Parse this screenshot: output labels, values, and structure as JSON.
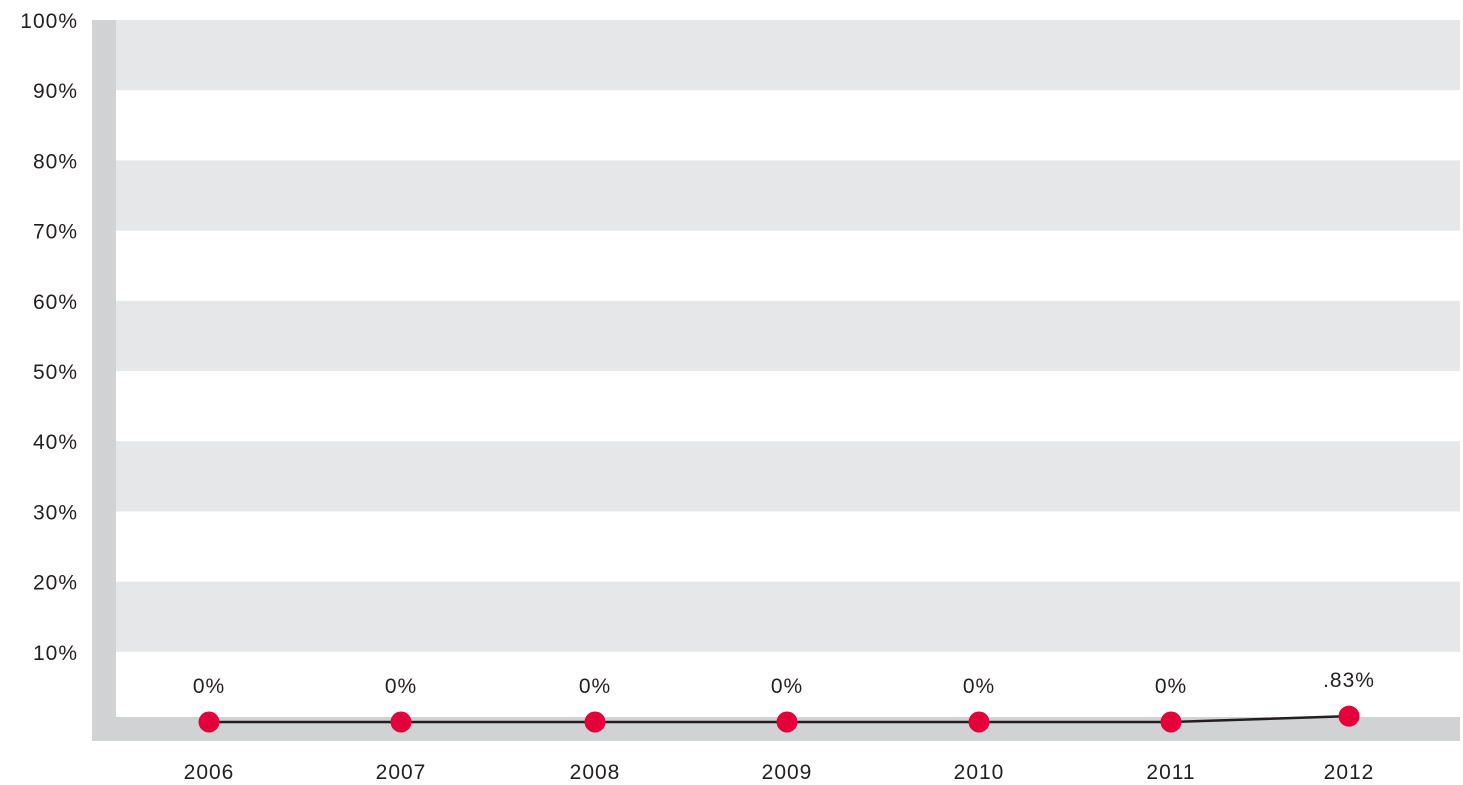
{
  "chart_data": {
    "type": "line",
    "title": "",
    "xlabel": "",
    "ylabel": "",
    "categories": [
      "2006",
      "2007",
      "2008",
      "2009",
      "2010",
      "2011",
      "2012"
    ],
    "series": [
      {
        "values": [
          0,
          0,
          0,
          0,
          0,
          0,
          0.83
        ]
      }
    ],
    "data_labels": [
      "0%",
      "0%",
      "0%",
      "0%",
      "0%",
      "0%",
      ".83%"
    ],
    "y_ticks": [
      "10%",
      "20%",
      "30%",
      "40%",
      "50%",
      "60%",
      "70%",
      "80%",
      "90%",
      "100%"
    ],
    "ylim": [
      0,
      100
    ],
    "grid": "alternating bands",
    "legend": "none",
    "colors": {
      "marker": "#e4003a",
      "line": "#231f20",
      "band": "#e6e7e8",
      "axis": "#d1d2d4",
      "text": "#231f20"
    }
  }
}
